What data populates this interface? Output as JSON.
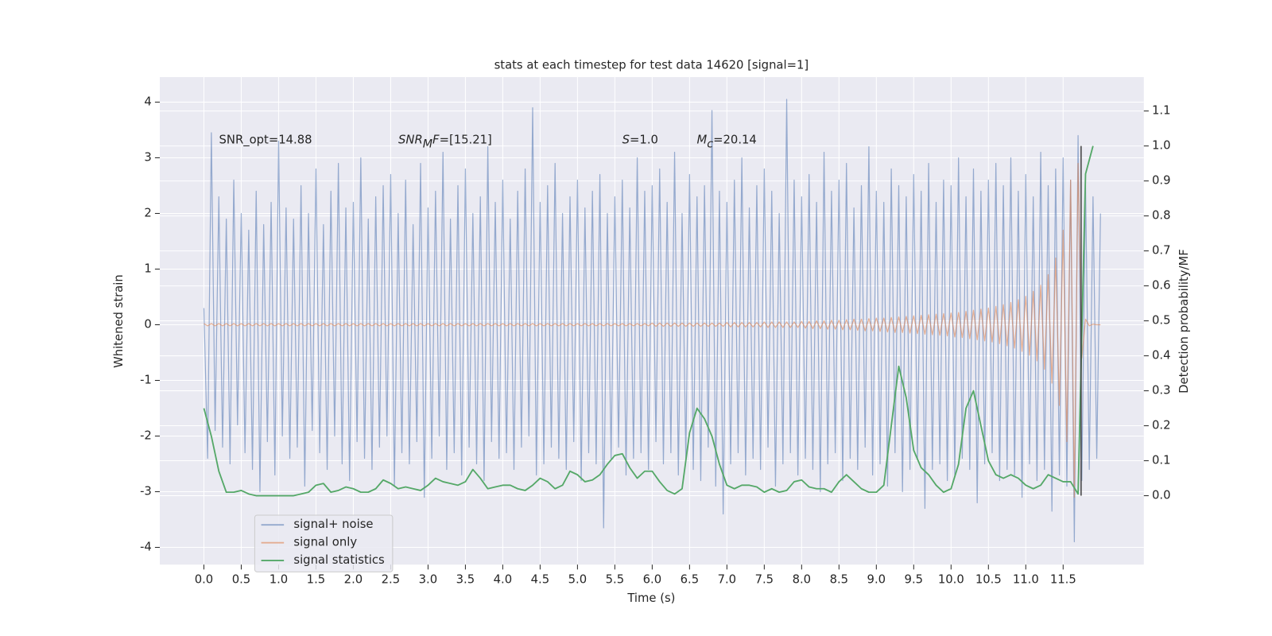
{
  "chart_data": {
    "type": "line",
    "title": "stats at each timestep for test data 14620 [signal=1]",
    "xlabel": "Time (s)",
    "ylabel": "Whitened strain",
    "y2label": "Detection probability/MF",
    "xlim": [
      -0.59,
      12.58
    ],
    "ylim": [
      -4.31,
      4.45
    ],
    "y2lim": [
      -0.197,
      1.197
    ],
    "xticks": [
      {
        "value": 0,
        "label": "0.0"
      },
      0.5,
      {
        "value": 1,
        "label": "1.0"
      },
      1.5,
      {
        "value": 2,
        "label": "2.0"
      },
      2.5,
      {
        "value": 3,
        "label": "3.0"
      },
      3.5,
      {
        "value": 4,
        "label": "4.0"
      },
      4.5,
      {
        "value": 5,
        "label": "5.0"
      },
      5.5,
      {
        "value": 6,
        "label": "6.0"
      },
      6.5,
      {
        "value": 7,
        "label": "7.0"
      },
      7.5,
      {
        "value": 8,
        "label": "8.0"
      },
      8.5,
      {
        "value": 9,
        "label": "9.0"
      },
      9.5,
      {
        "value": 10,
        "label": "10.0"
      },
      10.5,
      {
        "value": 11,
        "label": "11.0"
      },
      11.5
    ],
    "yticks": [
      -4,
      -3,
      -2,
      -1,
      0,
      1,
      2,
      3,
      4
    ],
    "y2ticks": [
      {
        "value": 0,
        "label": "0.0"
      },
      0.1,
      0.2,
      0.3,
      0.4,
      0.5,
      0.6,
      0.7,
      0.8,
      0.9,
      {
        "value": 1,
        "label": "1.0"
      },
      1.1
    ],
    "grid": true,
    "legend": "lower left",
    "background": "#eaeaf2",
    "x": [
      0,
      0.05,
      0.1,
      0.15,
      0.2,
      0.25,
      0.3,
      0.35,
      0.4,
      0.45,
      0.5,
      0.55,
      0.6,
      0.65,
      0.7,
      0.75,
      0.8,
      0.85,
      0.9,
      0.95,
      1,
      1.05,
      1.1,
      1.15,
      1.2,
      1.25,
      1.3,
      1.35,
      1.4,
      1.45,
      1.5,
      1.55,
      1.6,
      1.65,
      1.7,
      1.75,
      1.8,
      1.85,
      1.9,
      1.95,
      2,
      2.05,
      2.1,
      2.15,
      2.2,
      2.25,
      2.3,
      2.35,
      2.4,
      2.45,
      2.5,
      2.55,
      2.6,
      2.65,
      2.7,
      2.75,
      2.8,
      2.85,
      2.9,
      2.95,
      3,
      3.05,
      3.1,
      3.15,
      3.2,
      3.25,
      3.3,
      3.35,
      3.4,
      3.45,
      3.5,
      3.55,
      3.6,
      3.65,
      3.7,
      3.75,
      3.8,
      3.85,
      3.9,
      3.95,
      4,
      4.05,
      4.1,
      4.15,
      4.2,
      4.25,
      4.3,
      4.35,
      4.4,
      4.45,
      4.5,
      4.55,
      4.6,
      4.65,
      4.7,
      4.75,
      4.8,
      4.85,
      4.9,
      4.95,
      5,
      5.05,
      5.1,
      5.15,
      5.2,
      5.25,
      5.3,
      5.35,
      5.4,
      5.45,
      5.5,
      5.55,
      5.6,
      5.65,
      5.7,
      5.75,
      5.8,
      5.85,
      5.9,
      5.95,
      6,
      6.05,
      6.1,
      6.15,
      6.2,
      6.25,
      6.3,
      6.35,
      6.4,
      6.45,
      6.5,
      6.55,
      6.6,
      6.65,
      6.7,
      6.75,
      6.8,
      6.85,
      6.9,
      6.95,
      7,
      7.05,
      7.1,
      7.15,
      7.2,
      7.25,
      7.3,
      7.35,
      7.4,
      7.45,
      7.5,
      7.55,
      7.6,
      7.65,
      7.7,
      7.75,
      7.8,
      7.85,
      7.9,
      7.95,
      8,
      8.05,
      8.1,
      8.15,
      8.2,
      8.25,
      8.3,
      8.35,
      8.4,
      8.45,
      8.5,
      8.55,
      8.6,
      8.65,
      8.7,
      8.75,
      8.8,
      8.85,
      8.9,
      8.95,
      9,
      9.05,
      9.1,
      9.15,
      9.2,
      9.25,
      9.3,
      9.35,
      9.4,
      9.45,
      9.5,
      9.55,
      9.6,
      9.65,
      9.7,
      9.75,
      9.8,
      9.85,
      9.9,
      9.95,
      10,
      10.05,
      10.1,
      10.15,
      10.2,
      10.25,
      10.3,
      10.35,
      10.4,
      10.45,
      10.5,
      10.55,
      10.6,
      10.65,
      10.7,
      10.75,
      10.8,
      10.85,
      10.9,
      10.95,
      11,
      11.05,
      11.1,
      11.15,
      11.2,
      11.25,
      11.3,
      11.35,
      11.4,
      11.45,
      11.5,
      11.55,
      11.6,
      11.65,
      11.7,
      11.75,
      11.8,
      11.85,
      11.9,
      11.95,
      12
    ],
    "series": [
      {
        "name": "signal+ noise",
        "color": "#4c72b0",
        "alpha": 0.55,
        "values": [
          0.3,
          -2.4,
          3.45,
          -1.9,
          2.3,
          -2.2,
          1.9,
          -2.5,
          2.6,
          -1.8,
          2.0,
          -2.3,
          1.7,
          -2.6,
          2.4,
          -3.0,
          1.8,
          -2.1,
          2.2,
          -2.7,
          3.3,
          -2.0,
          2.1,
          -2.4,
          1.9,
          -2.2,
          2.5,
          -2.9,
          2.0,
          -1.9,
          2.8,
          -2.3,
          1.8,
          -2.6,
          2.4,
          -2.0,
          2.9,
          -2.5,
          2.1,
          -2.8,
          2.2,
          -2.1,
          3.0,
          -2.4,
          1.9,
          -2.6,
          2.3,
          -2.2,
          2.5,
          -2.0,
          2.7,
          -2.9,
          2.0,
          -2.3,
          2.6,
          -2.5,
          1.8,
          -2.1,
          2.9,
          -3.1,
          2.1,
          -2.4,
          2.4,
          -2.0,
          3.1,
          -2.6,
          1.9,
          -2.3,
          2.5,
          -2.7,
          2.8,
          -2.2,
          2.0,
          -2.5,
          2.3,
          -2.8,
          3.2,
          -2.1,
          2.2,
          -2.4,
          2.6,
          -2.3,
          1.9,
          -2.6,
          2.4,
          -2.2,
          2.8,
          -2.0,
          3.9,
          -2.7,
          2.2,
          -2.5,
          2.5,
          -2.2,
          2.9,
          -2.4,
          2.0,
          -2.6,
          2.3,
          -2.1,
          2.6,
          -2.8,
          2.1,
          -2.3,
          2.4,
          -2.5,
          2.7,
          -3.65,
          2.0,
          -2.4,
          2.3,
          -2.2,
          2.6,
          -2.7,
          2.1,
          -2.4,
          3.0,
          -2.3,
          2.4,
          -2.6,
          2.5,
          -2.1,
          2.8,
          -2.5,
          2.2,
          -2.3,
          3.1,
          -2.7,
          2.0,
          -2.4,
          2.7,
          -2.6,
          2.3,
          -2.8,
          2.5,
          -2.2,
          3.85,
          -2.9,
          2.4,
          -3.4,
          2.2,
          -2.5,
          2.6,
          -2.3,
          3.0,
          -2.7,
          2.1,
          -2.4,
          2.5,
          -2.6,
          2.8,
          -2.2,
          2.4,
          -2.9,
          2.0,
          -2.5,
          4.05,
          -2.3,
          2.6,
          -2.7,
          2.3,
          -2.4,
          2.7,
          -2.6,
          2.2,
          -3.0,
          3.1,
          -2.5,
          2.4,
          -2.3,
          2.6,
          -2.8,
          2.9,
          -2.4,
          2.1,
          -2.6,
          2.5,
          -2.2,
          3.2,
          -2.7,
          2.4,
          -2.5,
          2.2,
          -2.9,
          2.8,
          -2.3,
          2.5,
          -3.0,
          2.3,
          -2.6,
          2.7,
          -2.4,
          2.4,
          -3.3,
          2.9,
          -2.6,
          2.2,
          -2.5,
          2.6,
          -2.8,
          2.5,
          -2.7,
          3.0,
          -2.4,
          2.3,
          -2.6,
          2.8,
          -3.2,
          2.4,
          -2.5,
          2.6,
          -2.3,
          2.9,
          -2.8,
          2.5,
          -2.6,
          3.0,
          -2.7,
          2.4,
          -3.1,
          2.7,
          -2.5,
          2.3,
          -2.8,
          3.1,
          -2.6,
          2.5,
          -3.35,
          2.8,
          -2.7,
          3.0,
          -2.9,
          2.6,
          -3.9,
          3.4,
          -2.8,
          2.5,
          -2.6,
          2.3,
          -2.4,
          2.0
        ]
      },
      {
        "name": "signal only",
        "color": "#dd8452",
        "alpha": 0.6,
        "values": [
          0.02,
          -0.02,
          0.02,
          -0.02,
          0.02,
          -0.02,
          0.02,
          -0.02,
          0.02,
          -0.02,
          0.02,
          -0.02,
          0.02,
          -0.02,
          0.02,
          -0.02,
          0.02,
          -0.02,
          0.02,
          -0.02,
          0.02,
          -0.02,
          0.02,
          -0.02,
          0.02,
          -0.02,
          0.02,
          -0.02,
          0.02,
          -0.02,
          0.02,
          -0.02,
          0.02,
          -0.02,
          0.02,
          -0.02,
          0.02,
          -0.02,
          0.02,
          -0.02,
          0.02,
          -0.02,
          0.02,
          -0.02,
          0.02,
          -0.02,
          0.02,
          -0.02,
          0.02,
          -0.02,
          0.02,
          -0.02,
          0.02,
          -0.02,
          0.02,
          -0.02,
          0.02,
          -0.02,
          0.02,
          -0.02,
          0.02,
          -0.02,
          0.02,
          -0.02,
          0.02,
          -0.02,
          0.02,
          -0.02,
          0.02,
          -0.02,
          0.02,
          -0.02,
          0.02,
          -0.02,
          0.02,
          -0.02,
          0.02,
          -0.02,
          0.02,
          -0.02,
          0.02,
          -0.02,
          0.02,
          -0.02,
          0.02,
          -0.02,
          0.02,
          -0.02,
          0.02,
          -0.02,
          0.02,
          -0.02,
          0.02,
          -0.02,
          0.02,
          -0.02,
          0.02,
          -0.02,
          0.02,
          -0.02,
          0.02,
          -0.02,
          0.02,
          -0.02,
          0.02,
          -0.02,
          0.02,
          -0.02,
          0.02,
          -0.02,
          0.02,
          -0.02,
          0.02,
          -0.02,
          0.02,
          -0.02,
          0.02,
          -0.02,
          0.02,
          -0.02,
          0.03,
          -0.03,
          0.03,
          -0.03,
          0.03,
          -0.03,
          0.03,
          -0.03,
          0.03,
          -0.03,
          0.03,
          -0.03,
          0.03,
          -0.03,
          0.03,
          -0.03,
          0.03,
          -0.03,
          0.03,
          -0.03,
          0.04,
          -0.04,
          0.04,
          -0.04,
          0.04,
          -0.04,
          0.04,
          -0.04,
          0.04,
          -0.04,
          0.05,
          -0.05,
          0.05,
          -0.05,
          0.05,
          -0.05,
          0.05,
          -0.05,
          0.05,
          -0.05,
          0.06,
          -0.06,
          0.06,
          -0.07,
          0.07,
          -0.07,
          0.07,
          -0.08,
          0.08,
          -0.08,
          0.08,
          -0.09,
          0.09,
          -0.09,
          0.1,
          -0.1,
          0.1,
          -0.11,
          0.11,
          -0.11,
          0.12,
          -0.12,
          0.12,
          -0.13,
          0.13,
          -0.14,
          0.14,
          -0.14,
          0.15,
          -0.15,
          0.16,
          -0.16,
          0.17,
          -0.17,
          0.18,
          -0.18,
          0.19,
          -0.19,
          0.2,
          -0.2,
          0.21,
          -0.22,
          0.22,
          -0.23,
          0.24,
          -0.25,
          0.26,
          -0.27,
          0.28,
          -0.29,
          0.3,
          -0.31,
          0.33,
          -0.34,
          0.36,
          -0.38,
          0.4,
          -0.42,
          0.45,
          -0.48,
          0.51,
          -0.55,
          0.6,
          -0.65,
          0.71,
          -0.8,
          0.9,
          -1.05,
          1.2,
          -1.45,
          1.7,
          -2.1,
          2.6,
          -3.1,
          2.9,
          -0.6,
          0.1,
          -0.02,
          0.01,
          0,
          0
        ]
      },
      {
        "name": "signal statistics",
        "color": "#55a868",
        "axis": "y2",
        "x": [
          0,
          0.1,
          0.2,
          0.3,
          0.4,
          0.5,
          0.6,
          0.7,
          0.8,
          0.9,
          1,
          1.1,
          1.2,
          1.3,
          1.4,
          1.5,
          1.6,
          1.7,
          1.8,
          1.9,
          2,
          2.1,
          2.2,
          2.3,
          2.4,
          2.5,
          2.6,
          2.7,
          2.8,
          2.9,
          3,
          3.1,
          3.2,
          3.3,
          3.4,
          3.5,
          3.6,
          3.7,
          3.8,
          3.9,
          4,
          4.1,
          4.2,
          4.3,
          4.4,
          4.5,
          4.6,
          4.7,
          4.8,
          4.9,
          5,
          5.1,
          5.2,
          5.3,
          5.4,
          5.5,
          5.6,
          5.7,
          5.8,
          5.9,
          6,
          6.1,
          6.2,
          6.3,
          6.4,
          6.5,
          6.6,
          6.7,
          6.8,
          6.9,
          7,
          7.1,
          7.2,
          7.3,
          7.4,
          7.5,
          7.6,
          7.7,
          7.8,
          7.9,
          8,
          8.1,
          8.2,
          8.3,
          8.4,
          8.5,
          8.6,
          8.7,
          8.8,
          8.9,
          9,
          9.1,
          9.2,
          9.3,
          9.4,
          9.5,
          9.6,
          9.7,
          9.8,
          9.9,
          10,
          10.1,
          10.2,
          10.3,
          10.4,
          10.5,
          10.6,
          10.7,
          10.8,
          10.9,
          11,
          11.1,
          11.2,
          11.3,
          11.4,
          11.5,
          11.6,
          11.7,
          11.8,
          11.9
        ],
        "values": [
          0.25,
          0.17,
          0.07,
          0.01,
          0.01,
          0.015,
          0.005,
          0,
          0,
          0,
          0,
          0,
          0,
          0.005,
          0.01,
          0.03,
          0.035,
          0.01,
          0.015,
          0.025,
          0.02,
          0.01,
          0.01,
          0.02,
          0.045,
          0.035,
          0.02,
          0.025,
          0.02,
          0.015,
          0.03,
          0.05,
          0.04,
          0.035,
          0.03,
          0.04,
          0.075,
          0.05,
          0.02,
          0.025,
          0.03,
          0.03,
          0.02,
          0.015,
          0.03,
          0.05,
          0.04,
          0.02,
          0.03,
          0.07,
          0.06,
          0.04,
          0.045,
          0.06,
          0.09,
          0.115,
          0.12,
          0.08,
          0.05,
          0.07,
          0.07,
          0.04,
          0.015,
          0.005,
          0.02,
          0.18,
          0.25,
          0.22,
          0.17,
          0.09,
          0.03,
          0.02,
          0.03,
          0.03,
          0.025,
          0.01,
          0.02,
          0.01,
          0.015,
          0.04,
          0.045,
          0.025,
          0.02,
          0.02,
          0.01,
          0.04,
          0.06,
          0.04,
          0.02,
          0.01,
          0.01,
          0.03,
          0.2,
          0.37,
          0.28,
          0.13,
          0.08,
          0.06,
          0.03,
          0.01,
          0.02,
          0.09,
          0.25,
          0.3,
          0.2,
          0.1,
          0.06,
          0.05,
          0.06,
          0.05,
          0.03,
          0.02,
          0.03,
          0.06,
          0.05,
          0.04,
          0.04,
          0.005,
          0.92,
          1.0
        ]
      }
    ],
    "vline": {
      "x": 11.74,
      "ymin": 0,
      "ymax": 1,
      "color": "#404040"
    },
    "annotations": [
      {
        "parts": [
          {
            "text": "SNR_opt=14.88"
          }
        ]
      },
      {
        "parts": [
          {
            "text": "SNR",
            "italic": true
          },
          {
            "text": "M",
            "italic": true,
            "sub": true
          },
          {
            "text": "F",
            "italic": true
          },
          {
            "text": "=[15.21]"
          }
        ]
      },
      {
        "parts": [
          {
            "text": "S",
            "italic": true
          },
          {
            "text": "=1.0"
          }
        ]
      },
      {
        "parts": [
          {
            "text": "M",
            "italic": true
          },
          {
            "text": "c",
            "italic": true,
            "sub": true
          },
          {
            "text": "=20.14"
          }
        ]
      }
    ]
  }
}
